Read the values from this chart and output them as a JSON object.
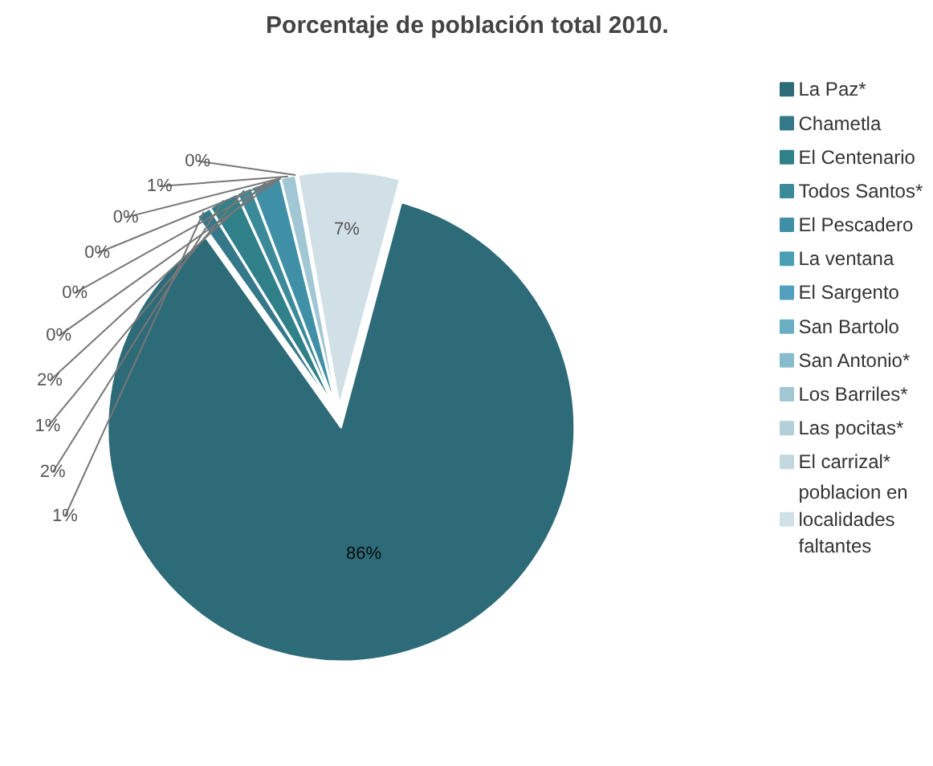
{
  "chart_data": {
    "type": "pie",
    "title": "Porcentaje de población total 2010.",
    "categories": [
      "La Paz*",
      "Chametla",
      "El Centenario",
      "Todos Santos*",
      "El Pescadero",
      "La ventana",
      "El Sargento",
      "San Bartolo",
      "San Antonio*",
      "Los Barriles*",
      "Las pocitas*",
      "El carrizal*",
      "poblacion en localidades faltantes"
    ],
    "values": [
      86,
      1,
      2,
      1,
      2,
      0,
      0,
      0,
      0,
      1,
      0,
      0,
      7
    ],
    "value_labels": [
      "86%",
      "1%",
      "2%",
      "1%",
      "2%",
      "0%",
      "0%",
      "0%",
      "0%",
      "1%",
      "0%",
      null,
      "7%"
    ],
    "colors": [
      "#2e6b78",
      "#34788a",
      "#2f8088",
      "#3a8a9a",
      "#3f90a6",
      "#4a9fb5",
      "#529fbf",
      "#6aaec4",
      "#86bccb",
      "#a0c7d3",
      "#b3d0d8",
      "#c3d8de",
      "#d0e0e6"
    ],
    "legend": "right"
  }
}
